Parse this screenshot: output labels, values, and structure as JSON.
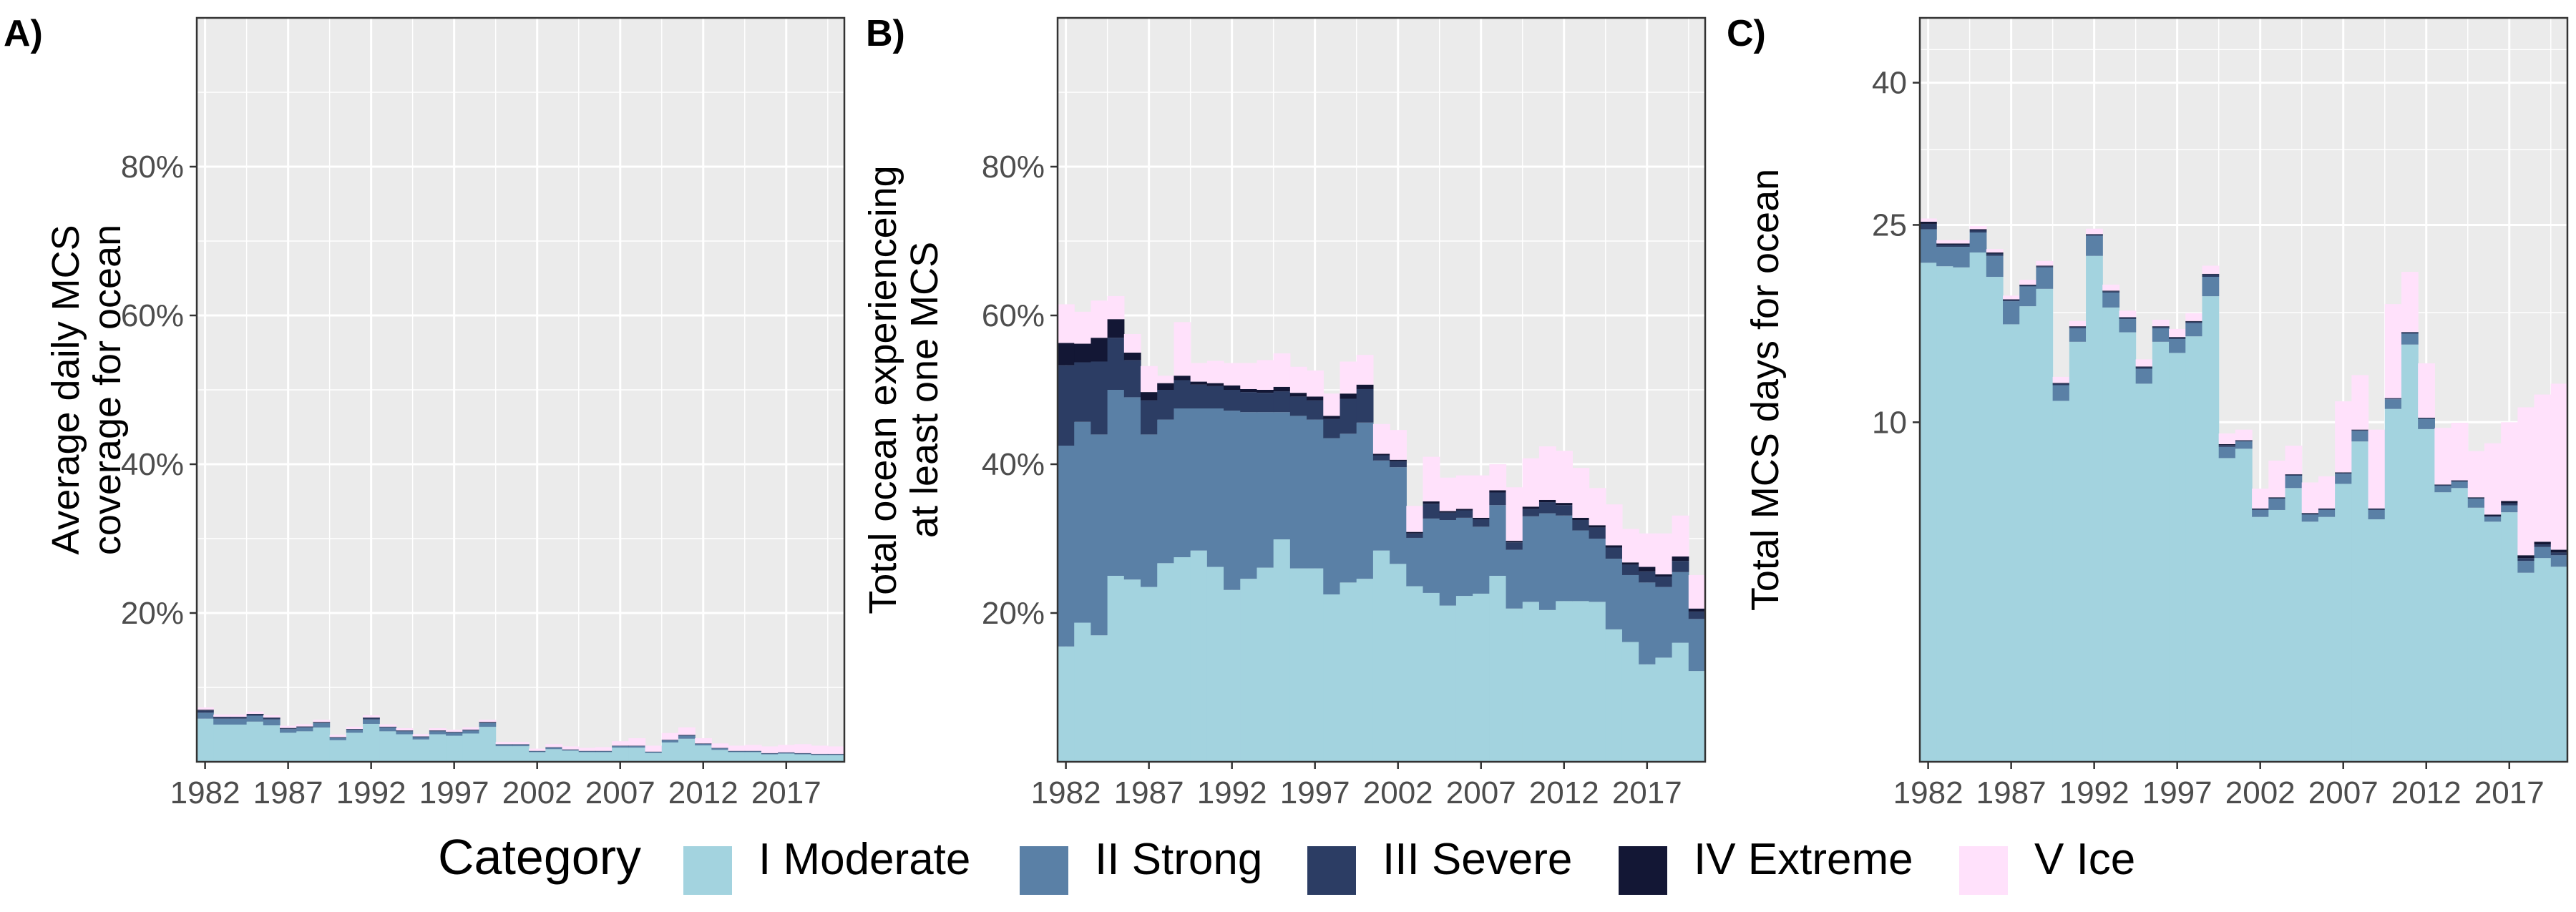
{
  "colors": {
    "panel_background": "#ebebeb",
    "grid": "#ffffff",
    "I Moderate": "#a3d3df",
    "II Strong": "#5a80a6",
    "III Severe": "#2c3d64",
    "IV Extreme": "#131735",
    "V Ice": "#ffe1fb"
  },
  "legend": {
    "title": "Category",
    "items": [
      {
        "label": "I Moderate",
        "color": "#a3d3df"
      },
      {
        "label": "II Strong",
        "color": "#5a80a6"
      },
      {
        "label": "III Severe",
        "color": "#2c3d64"
      },
      {
        "label": "IV Extreme",
        "color": "#131735"
      },
      {
        "label": "V Ice",
        "color": "#ffe1fb"
      }
    ]
  },
  "chart_data": [
    {
      "panel": "A)",
      "type": "bar",
      "stacked": true,
      "ylabel": [
        "Average daily MCS",
        "coverage for ocean"
      ],
      "ylim": [
        0,
        100
      ],
      "yticks": [
        20,
        40,
        60,
        80
      ],
      "ytick_labels": [
        "20%",
        "40%",
        "60%",
        "80%"
      ],
      "xlim": [
        1981.5,
        2020.5
      ],
      "xticks": [
        1982,
        1987,
        1992,
        1997,
        2002,
        2007,
        2012,
        2017
      ],
      "xtick_labels": [
        "1982",
        "1987",
        "1992",
        "1997",
        "2002",
        "2007",
        "2012",
        "2017"
      ],
      "x": [
        1982,
        1983,
        1984,
        1985,
        1986,
        1987,
        1988,
        1989,
        1990,
        1991,
        1992,
        1993,
        1994,
        1995,
        1996,
        1997,
        1998,
        1999,
        2000,
        2001,
        2002,
        2003,
        2004,
        2005,
        2006,
        2007,
        2008,
        2009,
        2010,
        2011,
        2012,
        2013,
        2014,
        2015,
        2016,
        2017,
        2018,
        2019,
        2020
      ],
      "series": [
        {
          "name": "I Moderate",
          "values": [
            5.8,
            5.0,
            5.0,
            5.4,
            4.9,
            3.9,
            4.1,
            4.6,
            2.9,
            3.9,
            5.1,
            4.1,
            3.7,
            3.0,
            3.7,
            3.5,
            3.8,
            4.7,
            2.1,
            2.1,
            1.3,
            1.7,
            1.5,
            1.3,
            1.3,
            1.9,
            1.9,
            1.2,
            2.6,
            3.1,
            2.2,
            1.6,
            1.3,
            1.3,
            1.0,
            1.1,
            1.0,
            0.9,
            0.9
          ]
        },
        {
          "name": "II Strong",
          "values": [
            0.8,
            0.8,
            0.8,
            0.8,
            0.8,
            0.5,
            0.5,
            0.6,
            0.3,
            0.4,
            0.6,
            0.5,
            0.4,
            0.3,
            0.4,
            0.4,
            0.4,
            0.5,
            0.2,
            0.2,
            0.1,
            0.2,
            0.1,
            0.1,
            0.1,
            0.2,
            0.2,
            0.1,
            0.3,
            0.4,
            0.2,
            0.2,
            0.1,
            0.1,
            0.1,
            0.1,
            0.1,
            0.1,
            0.1
          ]
        },
        {
          "name": "III Severe",
          "values": [
            0.3,
            0.2,
            0.2,
            0.2,
            0.2,
            0.1,
            0.1,
            0.1,
            0.1,
            0.1,
            0.2,
            0.1,
            0.1,
            0.1,
            0.1,
            0.1,
            0.1,
            0.1,
            0.05,
            0.05,
            0.05,
            0.05,
            0.05,
            0.05,
            0.05,
            0.05,
            0.05,
            0.05,
            0.05,
            0.1,
            0.05,
            0.05,
            0.05,
            0.05,
            0.05,
            0.05,
            0.05,
            0.05,
            0.05
          ]
        },
        {
          "name": "IV Extreme",
          "values": [
            0.1,
            0.05,
            0.05,
            0.05,
            0.05,
            0.05,
            0.05,
            0.05,
            0.02,
            0.02,
            0.05,
            0.02,
            0.02,
            0.02,
            0.02,
            0.02,
            0.02,
            0.05,
            0.02,
            0.02,
            0.02,
            0.02,
            0.02,
            0.02,
            0.02,
            0.02,
            0.02,
            0.02,
            0.02,
            0.02,
            0.02,
            0.02,
            0.02,
            0.02,
            0.02,
            0.02,
            0.02,
            0.02,
            0.02
          ]
        },
        {
          "name": "V Ice",
          "values": [
            0.3,
            0.3,
            0.3,
            0.3,
            0.3,
            0.3,
            0.3,
            0.3,
            0.3,
            0.3,
            0.3,
            0.3,
            0.3,
            0.3,
            0.3,
            0.3,
            0.3,
            0.3,
            0.3,
            0.3,
            0.3,
            0.4,
            0.4,
            0.4,
            0.5,
            0.6,
            1.0,
            0.8,
            0.9,
            1.0,
            0.7,
            0.6,
            0.7,
            0.8,
            0.9,
            1.0,
            1.2,
            1.1,
            1.0
          ]
        }
      ]
    },
    {
      "panel": "B)",
      "type": "bar",
      "stacked": true,
      "ylabel": [
        "Total ocean experienceing",
        "at least one MCS"
      ],
      "ylim": [
        0,
        100
      ],
      "yticks": [
        20,
        40,
        60,
        80
      ],
      "ytick_labels": [
        "20%",
        "40%",
        "60%",
        "80%"
      ],
      "xlim": [
        1981.5,
        2020.5
      ],
      "xticks": [
        1982,
        1987,
        1992,
        1997,
        2002,
        2007,
        2012,
        2017
      ],
      "xtick_labels": [
        "1982",
        "1987",
        "1992",
        "1997",
        "2002",
        "2007",
        "2012",
        "2017"
      ],
      "x": [
        1982,
        1983,
        1984,
        1985,
        1986,
        1987,
        1988,
        1989,
        1990,
        1991,
        1992,
        1993,
        1994,
        1995,
        1996,
        1997,
        1998,
        1999,
        2000,
        2001,
        2002,
        2003,
        2004,
        2005,
        2006,
        2007,
        2008,
        2009,
        2010,
        2011,
        2012,
        2013,
        2014,
        2015,
        2016,
        2017,
        2018,
        2019,
        2020
      ],
      "series": [
        {
          "name": "I Moderate",
          "values": [
            15.5,
            18.7,
            17.0,
            25.0,
            24.5,
            23.5,
            26.7,
            27.5,
            28.4,
            26.2,
            23.1,
            24.6,
            26.1,
            29.9,
            26.0,
            26.0,
            22.5,
            24.1,
            24.6,
            28.4,
            26.6,
            23.6,
            22.7,
            21.0,
            22.3,
            22.6,
            25.0,
            20.6,
            21.5,
            20.4,
            21.6,
            21.6,
            21.5,
            17.8,
            16.1,
            13.1,
            14.0,
            16.0,
            12.2
          ]
        },
        {
          "name": "II Strong",
          "values": [
            27.0,
            27.0,
            27.0,
            25.0,
            24.5,
            20.5,
            19.3,
            20.0,
            19.1,
            21.3,
            24.1,
            22.4,
            20.9,
            17.1,
            20.5,
            20.0,
            21.0,
            20.0,
            21.0,
            12.1,
            13.0,
            6.5,
            10.0,
            11.5,
            10.5,
            9.0,
            9.5,
            7.9,
            11.5,
            13.0,
            11.5,
            9.5,
            8.5,
            9.5,
            9.0,
            11.0,
            9.5,
            9.5,
            7.0
          ]
        },
        {
          "name": "III Severe",
          "values": [
            10.8,
            8.0,
            9.8,
            7.0,
            5.0,
            4.6,
            4.0,
            3.8,
            3.2,
            3.0,
            2.8,
            2.7,
            2.6,
            2.8,
            2.6,
            2.6,
            2.6,
            4.7,
            4.5,
            0.7,
            0.8,
            0.6,
            2.0,
            1.0,
            1.0,
            1.0,
            1.7,
            1.0,
            1.0,
            1.5,
            1.4,
            1.4,
            1.5,
            1.5,
            1.4,
            1.5,
            1.4,
            1.5,
            1.0
          ]
        },
        {
          "name": "IV Extreme",
          "values": [
            3.0,
            2.5,
            3.2,
            2.5,
            1.0,
            1.1,
            0.9,
            0.6,
            0.4,
            0.4,
            0.6,
            0.4,
            0.4,
            0.6,
            0.5,
            0.5,
            0.4,
            0.7,
            0.6,
            0.2,
            0.2,
            0.2,
            0.3,
            0.2,
            0.2,
            0.2,
            0.3,
            0.2,
            0.3,
            0.3,
            0.3,
            0.3,
            0.3,
            0.3,
            0.3,
            0.6,
            0.3,
            0.6,
            0.4
          ]
        },
        {
          "name": "V Ice",
          "values": [
            5.2,
            4.3,
            5.0,
            3.1,
            2.5,
            3.5,
            1.0,
            7.2,
            2.5,
            3.0,
            3.0,
            3.5,
            4.0,
            4.5,
            3.5,
            3.5,
            3.0,
            4.3,
            4.0,
            4.0,
            4.0,
            3.5,
            6.0,
            4.5,
            4.5,
            5.7,
            3.5,
            7.2,
            6.5,
            7.2,
            7.0,
            6.7,
            5.0,
            5.5,
            4.5,
            4.5,
            5.5,
            5.5,
            4.5
          ]
        }
      ]
    },
    {
      "panel": "C)",
      "type": "bar",
      "stacked": true,
      "ylabel": [
        "Total MCS days for ocean"
      ],
      "yscale": "sqrt",
      "ylim": [
        0,
        48
      ],
      "yticks": [
        10,
        25,
        40
      ],
      "ytick_labels": [
        "10",
        "25",
        "40"
      ],
      "xlim": [
        1981.5,
        2020.5
      ],
      "xticks": [
        1982,
        1987,
        1992,
        1997,
        2002,
        2007,
        2012,
        2017
      ],
      "xtick_labels": [
        "1982",
        "1987",
        "1992",
        "1997",
        "2002",
        "2007",
        "2012",
        "2017"
      ],
      "x": [
        1982,
        1983,
        1984,
        1985,
        1986,
        1987,
        1988,
        1989,
        1990,
        1991,
        1992,
        1993,
        1994,
        1995,
        1996,
        1997,
        1998,
        1999,
        2000,
        2001,
        2002,
        2003,
        2004,
        2005,
        2006,
        2007,
        2008,
        2009,
        2010,
        2011,
        2012,
        2013,
        2014,
        2015,
        2016,
        2017,
        2018,
        2019,
        2020
      ],
      "series": [
        {
          "name": "I Moderate",
          "values": [
            21.6,
            21.3,
            21.2,
            22.5,
            20.4,
            16.6,
            18.0,
            19.4,
            11.3,
            15.3,
            22.2,
            17.9,
            16.0,
            12.4,
            15.3,
            14.5,
            15.7,
            18.8,
            8.0,
            8.5,
            5.2,
            5.5,
            6.5,
            5.0,
            5.2,
            6.7,
            8.9,
            5.1,
            10.8,
            15.1,
            9.6,
            6.3,
            6.5,
            5.6,
            5.0,
            5.4,
            3.1,
            3.6,
            3.3
          ]
        },
        {
          "name": "II Strong",
          "values": [
            3.0,
            1.7,
            1.8,
            1.8,
            1.8,
            1.8,
            1.6,
            1.8,
            1.0,
            1.0,
            1.8,
            1.2,
            1.0,
            1.0,
            1.0,
            1.0,
            1.0,
            1.6,
            0.6,
            0.4,
            0.3,
            0.5,
            0.6,
            0.3,
            0.3,
            0.5,
            0.6,
            0.4,
            0.6,
            0.8,
            0.6,
            0.3,
            0.3,
            0.4,
            0.2,
            0.3,
            0.4,
            0.4,
            0.4
          ]
        },
        {
          "name": "III Severe",
          "values": [
            0.5,
            0.2,
            0.2,
            0.2,
            0.2,
            0.1,
            0.1,
            0.1,
            0.1,
            0.1,
            0.1,
            0.1,
            0.1,
            0.1,
            0.1,
            0.1,
            0.1,
            0.2,
            0.1,
            0.05,
            0.05,
            0.05,
            0.05,
            0.05,
            0.05,
            0.05,
            0.05,
            0.05,
            0.05,
            0.1,
            0.05,
            0.05,
            0.05,
            0.05,
            0.05,
            0.1,
            0.1,
            0.1,
            0.1
          ]
        },
        {
          "name": "IV Extreme",
          "values": [
            0.2,
            0.1,
            0.1,
            0.1,
            0.1,
            0.05,
            0.05,
            0.05,
            0.05,
            0.05,
            0.05,
            0.05,
            0.05,
            0.05,
            0.05,
            0.05,
            0.05,
            0.05,
            0.05,
            0.02,
            0.02,
            0.02,
            0.02,
            0.02,
            0.02,
            0.02,
            0.02,
            0.02,
            0.02,
            0.02,
            0.02,
            0.02,
            0.02,
            0.02,
            0.05,
            0.1,
            0.1,
            0.1,
            0.1
          ]
        },
        {
          "name": "V Ice",
          "values": [
            0.3,
            0.3,
            0.3,
            0.3,
            0.3,
            0.3,
            0.4,
            0.4,
            0.4,
            0.4,
            0.5,
            0.5,
            0.5,
            0.5,
            0.5,
            0.6,
            0.6,
            0.7,
            0.6,
            0.6,
            0.9,
            1.8,
            1.5,
            1.4,
            1.5,
            4.0,
            3.4,
            4.0,
            6.7,
            4.8,
            3.5,
            3.0,
            3.1,
            2.3,
            3.5,
            4.1,
            7.2,
            7.5,
            8.5
          ]
        }
      ]
    }
  ]
}
